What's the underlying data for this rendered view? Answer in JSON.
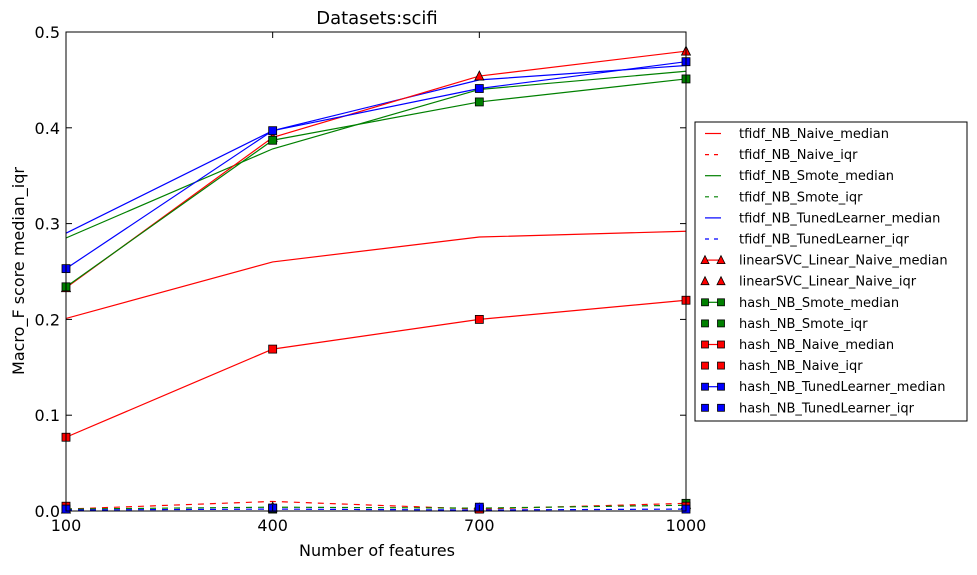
{
  "chart_data": {
    "type": "line",
    "title": "Datasets:scifi",
    "xlabel": "Number of features",
    "ylabel": "Macro_F score median_iqr",
    "xlim": [
      100,
      1000
    ],
    "ylim": [
      0,
      0.5
    ],
    "x": [
      100,
      400,
      700,
      1000
    ],
    "xticks": [
      "100",
      "400",
      "700",
      "1000"
    ],
    "yticks": [
      "0.0",
      "0.1",
      "0.2",
      "0.3",
      "0.4",
      "0.5"
    ],
    "grid": false,
    "legend_position": "right, outside",
    "series": [
      {
        "name": "tfidf_NB_Naive_median",
        "color": "#ff0000",
        "line": "solid",
        "marker": "none",
        "values": [
          0.201,
          0.26,
          0.286,
          0.292
        ]
      },
      {
        "name": "tfidf_NB_Naive_iqr",
        "color": "#ff0000",
        "line": "dashed",
        "marker": "none",
        "values": [
          0.002,
          0.01,
          0.002,
          0.008
        ]
      },
      {
        "name": "tfidf_NB_Smote_median",
        "color": "#008000",
        "line": "solid",
        "marker": "none",
        "values": [
          0.285,
          0.378,
          0.44,
          0.459
        ]
      },
      {
        "name": "tfidf_NB_Smote_iqr",
        "color": "#008000",
        "line": "dashed",
        "marker": "none",
        "values": [
          0.002,
          0.004,
          0.003,
          0.006
        ]
      },
      {
        "name": "tfidf_NB_TunedLearner_median",
        "color": "#0000ff",
        "line": "solid",
        "marker": "none",
        "values": [
          0.29,
          0.397,
          0.45,
          0.465
        ]
      },
      {
        "name": "tfidf_NB_TunedLearner_iqr",
        "color": "#0000ff",
        "line": "dashed",
        "marker": "none",
        "values": [
          0.001,
          0.002,
          0.001,
          0.002
        ]
      },
      {
        "name": "linearSVC_Linear_Naive_median",
        "color": "#ff0000",
        "line": "solid",
        "marker": "triangle",
        "values": [
          0.233,
          0.39,
          0.454,
          0.48
        ]
      },
      {
        "name": "linearSVC_Linear_Naive_iqr",
        "color": "#ff0000",
        "line": "none",
        "marker": "triangle",
        "values": [
          0.002,
          0.004,
          0.003,
          0.007
        ]
      },
      {
        "name": "hash_NB_Smote_median",
        "color": "#008000",
        "line": "solid",
        "marker": "square",
        "values": [
          0.234,
          0.387,
          0.427,
          0.451
        ]
      },
      {
        "name": "hash_NB_Smote_iqr",
        "color": "#008000",
        "line": "none",
        "marker": "square",
        "values": [
          0.002,
          0.002,
          0.002,
          0.008
        ]
      },
      {
        "name": "hash_NB_Naive_median",
        "color": "#ff0000",
        "line": "solid",
        "marker": "square",
        "values": [
          0.077,
          0.169,
          0.2,
          0.22
        ]
      },
      {
        "name": "hash_NB_Naive_iqr",
        "color": "#ff0000",
        "line": "none",
        "marker": "square",
        "values": [
          0.005,
          0.003,
          0.002,
          0.005
        ]
      },
      {
        "name": "hash_NB_TunedLearner_median",
        "color": "#0000ff",
        "line": "solid",
        "marker": "square",
        "values": [
          0.253,
          0.397,
          0.441,
          0.469
        ]
      },
      {
        "name": "hash_NB_TunedLearner_iqr",
        "color": "#0000ff",
        "line": "none",
        "marker": "square",
        "values": [
          0.002,
          0.003,
          0.004,
          0.002
        ]
      }
    ]
  }
}
